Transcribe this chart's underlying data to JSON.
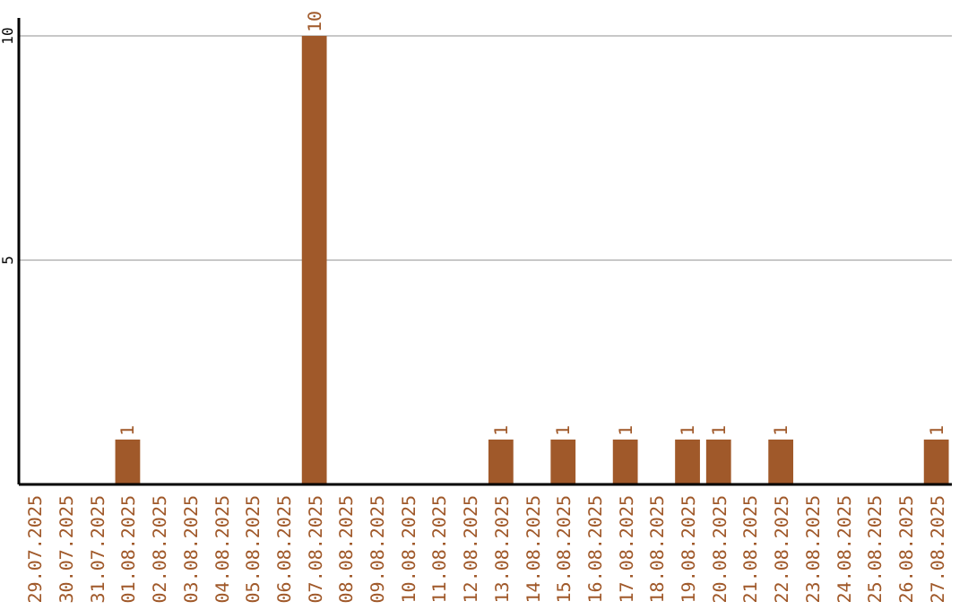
{
  "chart_data": {
    "type": "bar",
    "categories": [
      "29.07.2025",
      "30.07.2025",
      "31.07.2025",
      "01.08.2025",
      "02.08.2025",
      "03.08.2025",
      "04.08.2025",
      "05.08.2025",
      "06.08.2025",
      "07.08.2025",
      "08.08.2025",
      "09.08.2025",
      "10.08.2025",
      "11.08.2025",
      "12.08.2025",
      "13.08.2025",
      "14.08.2025",
      "15.08.2025",
      "16.08.2025",
      "17.08.2025",
      "18.08.2025",
      "19.08.2025",
      "20.08.2025",
      "21.08.2025",
      "22.08.2025",
      "23.08.2025",
      "24.08.2025",
      "25.08.2025",
      "26.08.2025",
      "27.08.2025"
    ],
    "values": [
      0,
      0,
      0,
      1,
      0,
      0,
      0,
      0,
      0,
      10,
      0,
      0,
      0,
      0,
      0,
      1,
      0,
      1,
      0,
      1,
      0,
      1,
      1,
      0,
      1,
      0,
      0,
      0,
      0,
      1
    ],
    "value_labels": [
      null,
      null,
      null,
      "1",
      null,
      null,
      null,
      null,
      null,
      "10",
      null,
      null,
      null,
      null,
      null,
      "1",
      null,
      "1",
      null,
      "1",
      null,
      "1",
      "1",
      null,
      "1",
      null,
      null,
      null,
      null,
      "1"
    ],
    "color": "#a0592a",
    "ylim": [
      0,
      10
    ],
    "yticks": [
      5,
      10
    ],
    "grid": "y"
  }
}
